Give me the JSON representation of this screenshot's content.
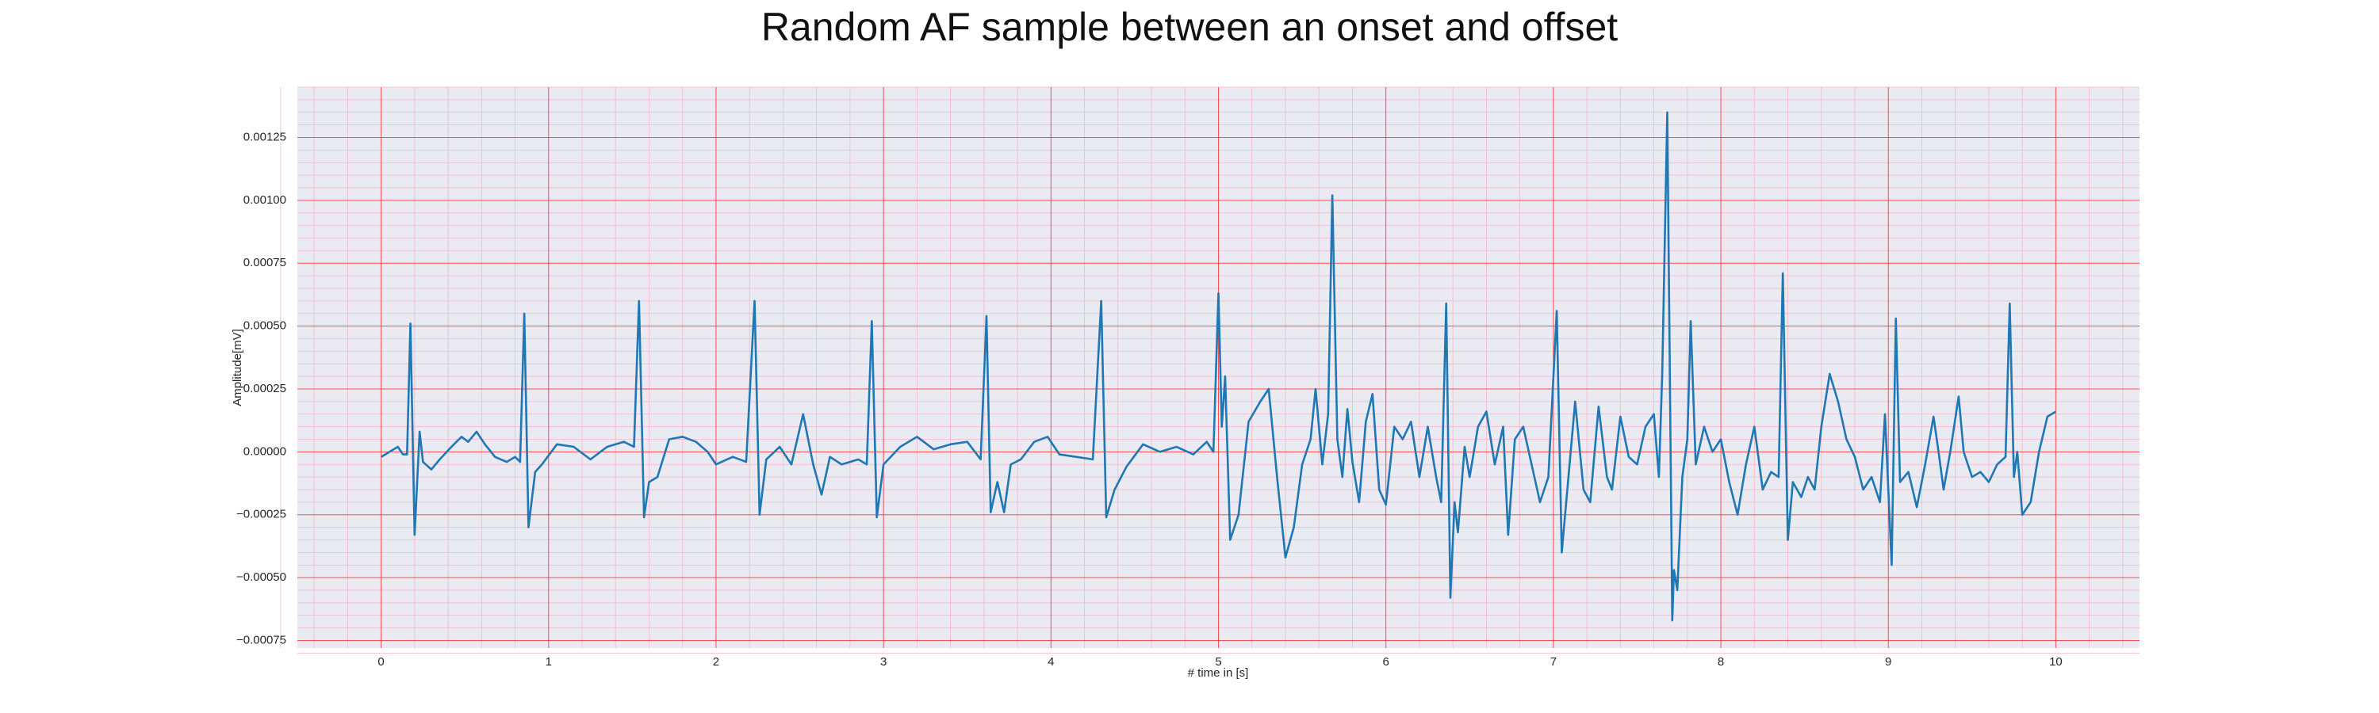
{
  "chart_data": {
    "type": "line",
    "title": "Random AF sample between an onset and offset",
    "xlabel": "# time in [s]",
    "ylabel": "Amplitude[mV]",
    "color": "#1f77b4",
    "grid": true,
    "minor_grid": true,
    "xlim": [
      -0.5,
      10.5
    ],
    "ylim": [
      -0.00078,
      0.00145
    ],
    "xticks": [
      0,
      1,
      2,
      3,
      4,
      5,
      6,
      7,
      8,
      9,
      10
    ],
    "yticks": [
      {
        "value": -0.00075,
        "label": "−0.00075"
      },
      {
        "value": -0.0005,
        "label": "−0.00050"
      },
      {
        "value": -0.00025,
        "label": "−0.00025"
      },
      {
        "value": 0,
        "label": "0.00000"
      },
      {
        "value": 0.00025,
        "label": "0.00025"
      },
      {
        "value": 0.0005,
        "label": "0.00050"
      },
      {
        "value": 0.00075,
        "label": "0.00075"
      },
      {
        "value": 0.001,
        "label": "0.00100"
      },
      {
        "value": 0.00125,
        "label": "0.00125"
      }
    ],
    "x": [
      0.0,
      0.05,
      0.1,
      0.13,
      0.155,
      0.175,
      0.2,
      0.23,
      0.25,
      0.3,
      0.35,
      0.42,
      0.48,
      0.52,
      0.57,
      0.62,
      0.68,
      0.75,
      0.8,
      0.83,
      0.855,
      0.88,
      0.92,
      0.96,
      1.05,
      1.15,
      1.25,
      1.35,
      1.45,
      1.51,
      1.54,
      1.57,
      1.6,
      1.65,
      1.72,
      1.8,
      1.88,
      1.95,
      2.0,
      2.1,
      2.18,
      2.23,
      2.26,
      2.3,
      2.38,
      2.45,
      2.52,
      2.58,
      2.63,
      2.68,
      2.75,
      2.85,
      2.9,
      2.93,
      2.96,
      3.0,
      3.1,
      3.2,
      3.3,
      3.4,
      3.5,
      3.58,
      3.615,
      3.64,
      3.68,
      3.72,
      3.76,
      3.82,
      3.9,
      3.98,
      4.05,
      4.15,
      4.25,
      4.3,
      4.33,
      4.38,
      4.45,
      4.55,
      4.65,
      4.75,
      4.85,
      4.93,
      4.97,
      5.0,
      5.02,
      5.04,
      5.07,
      5.12,
      5.18,
      5.25,
      5.3,
      5.35,
      5.4,
      5.45,
      5.5,
      5.55,
      5.58,
      5.62,
      5.655,
      5.68,
      5.71,
      5.74,
      5.77,
      5.8,
      5.84,
      5.88,
      5.92,
      5.96,
      6.0,
      6.05,
      6.1,
      6.15,
      6.2,
      6.25,
      6.3,
      6.33,
      6.36,
      6.385,
      6.41,
      6.43,
      6.47,
      6.5,
      6.55,
      6.6,
      6.65,
      6.7,
      6.73,
      6.77,
      6.82,
      6.87,
      6.92,
      6.97,
      7.02,
      7.05,
      7.09,
      7.13,
      7.18,
      7.22,
      7.27,
      7.32,
      7.35,
      7.4,
      7.45,
      7.5,
      7.55,
      7.6,
      7.63,
      7.65,
      7.68,
      7.71,
      7.72,
      7.74,
      7.77,
      7.8,
      7.82,
      7.85,
      7.9,
      7.95,
      8.0,
      8.05,
      8.1,
      8.15,
      8.2,
      8.25,
      8.3,
      8.345,
      8.37,
      8.4,
      8.43,
      8.48,
      8.52,
      8.56,
      8.6,
      8.65,
      8.7,
      8.75,
      8.8,
      8.85,
      8.9,
      8.95,
      8.98,
      9.02,
      9.045,
      9.07,
      9.12,
      9.17,
      9.22,
      9.27,
      9.3,
      9.33,
      9.37,
      9.42,
      9.45,
      9.5,
      9.55,
      9.6,
      9.65,
      9.7,
      9.725,
      9.75,
      9.77,
      9.8,
      9.85,
      9.9,
      9.95,
      10.0
    ],
    "values": [
      -2e-05,
      0,
      2e-05,
      -1e-05,
      -1e-05,
      0.00051,
      -0.00033,
      8e-05,
      -4e-05,
      -7e-05,
      -3e-05,
      2e-05,
      6e-05,
      4e-05,
      8e-05,
      3e-05,
      -2e-05,
      -4e-05,
      -2e-05,
      -4e-05,
      0.00055,
      -0.0003,
      -8e-05,
      -5e-05,
      3e-05,
      2e-05,
      -3e-05,
      2e-05,
      4e-05,
      2e-05,
      0.0006,
      -0.00026,
      -0.00012,
      -0.0001,
      5e-05,
      6e-05,
      4e-05,
      0,
      -5e-05,
      -2e-05,
      -4e-05,
      0.0006,
      -0.00025,
      -3e-05,
      2e-05,
      -5e-05,
      0.00015,
      -5e-05,
      -0.00017,
      -2e-05,
      -5e-05,
      -3e-05,
      -5e-05,
      0.00052,
      -0.00026,
      -5e-05,
      2e-05,
      6e-05,
      1e-05,
      3e-05,
      4e-05,
      -3e-05,
      0.00054,
      -0.00024,
      -0.00012,
      -0.00024,
      -5e-05,
      -3e-05,
      4e-05,
      6e-05,
      -1e-05,
      -2e-05,
      -3e-05,
      0.0006,
      -0.00026,
      -0.00015,
      -6e-05,
      3e-05,
      0,
      2e-05,
      -1e-05,
      4e-05,
      0,
      0.00063,
      0.0001,
      0.0003,
      -0.00035,
      -0.00025,
      0.00012,
      0.0002,
      0.00025,
      -0.0001,
      -0.00042,
      -0.0003,
      -5e-05,
      5e-05,
      0.00025,
      -5e-05,
      0.00015,
      0.00102,
      5e-05,
      -0.0001,
      0.00017,
      -4e-05,
      -0.0002,
      0.00012,
      0.00023,
      -0.00015,
      -0.00021,
      0.0001,
      5e-05,
      0.00012,
      -0.0001,
      0.0001,
      -0.0001,
      -0.0002,
      0.00059,
      -0.00058,
      -0.0002,
      -0.00032,
      2e-05,
      -0.0001,
      0.0001,
      0.00016,
      -5e-05,
      0.0001,
      -0.00033,
      5e-05,
      0.0001,
      -5e-05,
      -0.0002,
      -0.0001,
      0.00056,
      -0.0004,
      -0.0001,
      0.0002,
      -0.00015,
      -0.0002,
      0.00018,
      -0.0001,
      -0.00015,
      0.00014,
      -2e-05,
      -5e-05,
      0.0001,
      0.00015,
      -0.0001,
      0.00031,
      0.00135,
      -0.00067,
      -0.00047,
      -0.00055,
      -0.0001,
      5e-05,
      0.00052,
      -5e-05,
      0.0001,
      0,
      5e-05,
      -0.00012,
      -0.00025,
      -5e-05,
      0.0001,
      -0.00015,
      -8e-05,
      -0.0001,
      0.00071,
      -0.00035,
      -0.00012,
      -0.00018,
      -0.0001,
      -0.00015,
      0.0001,
      0.00031,
      0.0002,
      5e-05,
      -2e-05,
      -0.00015,
      -0.0001,
      -0.0002,
      0.00015,
      -0.00045,
      0.00053,
      -0.00012,
      -8e-05,
      -0.00022,
      -5e-05,
      0.00014,
      0,
      -0.00015,
      0,
      0.00022,
      0,
      -0.0001,
      -8e-05,
      -0.00012,
      -5e-05,
      -2e-05,
      0.00059,
      -0.0001,
      0,
      -0.00025,
      -0.0002,
      0,
      0.00014,
      0.00016
    ]
  }
}
